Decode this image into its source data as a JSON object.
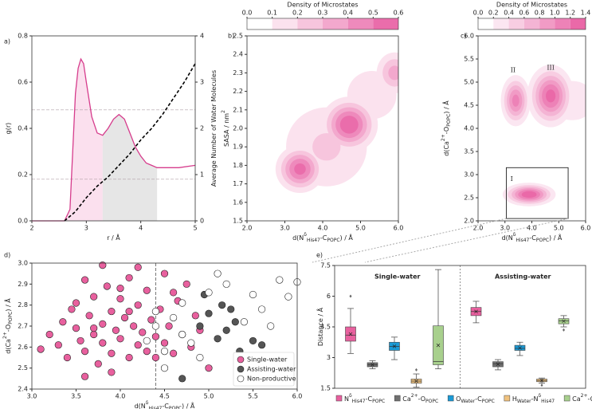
{
  "chart_data": [
    {
      "type": "line",
      "panel_label": "a)",
      "x_label": [
        {
          "text": "r / Å"
        }
      ],
      "y_label": [
        {
          "text": "g(r)"
        }
      ],
      "y2_label": [
        {
          "text": "Average Number of Water Molecules"
        }
      ],
      "xlim": [
        2,
        5
      ],
      "xticks": [
        2,
        3,
        4,
        5
      ],
      "ylim": [
        0,
        0.8
      ],
      "yticks": [
        {
          "value": 0,
          "label": "0.0"
        },
        0.2,
        0.4,
        0.6,
        0.8
      ],
      "y2lim": [
        0,
        4
      ],
      "y2ticks": [
        0,
        1,
        2,
        3,
        4
      ],
      "regions": [
        {
          "x": [
            2.6,
            3.3
          ],
          "color": "#fbe0ee"
        },
        {
          "x": [
            3.3,
            4.3
          ],
          "color": "#e6e6e6"
        }
      ],
      "hlines": [
        0.48,
        0.18
      ],
      "series": [
        {
          "color": "#d63c8c",
          "x": [
            2.0,
            2.6,
            2.7,
            2.75,
            2.8,
            2.85,
            2.9,
            2.95,
            3.0,
            3.1,
            3.2,
            3.3,
            3.4,
            3.5,
            3.6,
            3.7,
            3.8,
            3.9,
            4.0,
            4.1,
            4.2,
            4.3,
            4.5,
            4.7,
            5.0
          ],
          "values": [
            0,
            0,
            0.05,
            0.3,
            0.55,
            0.66,
            0.7,
            0.68,
            0.6,
            0.45,
            0.38,
            0.37,
            0.4,
            0.44,
            0.46,
            0.44,
            0.38,
            0.32,
            0.28,
            0.25,
            0.24,
            0.23,
            0.23,
            0.23,
            0.24
          ]
        },
        {
          "color": "#000000",
          "dashed": true,
          "axis": "y2",
          "x": [
            2.6,
            2.8,
            3.0,
            3.2,
            3.4,
            3.6,
            3.8,
            4.0,
            4.2,
            4.4,
            4.6,
            4.8,
            5.0
          ],
          "values": [
            0,
            0.2,
            0.5,
            0.75,
            0.95,
            1.2,
            1.45,
            1.75,
            2.0,
            2.3,
            2.65,
            3.0,
            3.4
          ]
        }
      ]
    },
    {
      "type": "contour",
      "panel_label": "b)",
      "colorbar_title": "Density of Microstates",
      "clim": [
        0,
        0.6
      ],
      "cticks": [
        {
          "value": 0,
          "label": "0.0"
        },
        0.1,
        0.2,
        0.3,
        0.4,
        0.5,
        0.6
      ],
      "colors": [
        "#ffffff",
        "#e6509a"
      ],
      "x_label": [
        {
          "text": "d(N"
        },
        {
          "text": "δ",
          "shift": "super"
        },
        {
          "text": "His47",
          "shift": "sub"
        },
        {
          "text": "-C"
        },
        {
          "text": "POPC",
          "shift": "sub"
        },
        {
          "text": ") / Å"
        }
      ],
      "y_label": [
        {
          "text": "SASA / nm"
        },
        {
          "text": "2",
          "shift": "super"
        }
      ],
      "xlim": [
        2,
        6
      ],
      "xticks": [
        {
          "value": 2,
          "label": "2.0"
        },
        {
          "value": 3,
          "label": "3.0"
        },
        {
          "value": 4,
          "label": "4.0"
        },
        {
          "value": 5,
          "label": "5.0"
        },
        {
          "value": 6,
          "label": "6.0"
        }
      ],
      "ylim": [
        1.5,
        2.5
      ],
      "yticks": [
        1.5,
        1.6,
        1.7,
        1.8,
        1.9,
        {
          "value": 2,
          "label": "2.0"
        },
        2.1,
        2.2,
        2.3,
        2.4,
        2.5
      ],
      "peaks": [
        {
          "x": 4.1,
          "y": 1.9,
          "density": 0.22,
          "sx": 0.85,
          "sy": 0.17
        },
        {
          "x": 5.3,
          "y": 2.18,
          "density": 0.18,
          "sx": 0.6,
          "sy": 0.12
        },
        {
          "x": 3.4,
          "y": 1.78,
          "density": 0.55,
          "sx": 0.35,
          "sy": 0.07
        },
        {
          "x": 4.7,
          "y": 2.02,
          "density": 0.6,
          "sx": 0.4,
          "sy": 0.08
        },
        {
          "x": 5.9,
          "y": 2.3,
          "density": 0.35,
          "sx": 0.3,
          "sy": 0.07
        }
      ]
    },
    {
      "type": "contour",
      "panel_label": "c)",
      "colorbar_title": "Density of Microstates",
      "clim": [
        0,
        1.4
      ],
      "cticks": [
        {
          "value": 0,
          "label": "0.0"
        },
        0.2,
        0.4,
        0.6,
        0.8,
        {
          "value": 1,
          "label": "1.0"
        },
        1.2,
        1.4
      ],
      "colors": [
        "#ffffff",
        "#e6509a"
      ],
      "x_label": [
        {
          "text": "d(N"
        },
        {
          "text": "δ",
          "shift": "super"
        },
        {
          "text": "His47",
          "shift": "sub"
        },
        {
          "text": "-C"
        },
        {
          "text": "POPC",
          "shift": "sub"
        },
        {
          "text": ") / Å"
        }
      ],
      "y_label": [
        {
          "text": "d(Ca"
        },
        {
          "text": "2+",
          "shift": "super"
        },
        {
          "text": "-O"
        },
        {
          "text": "POPC",
          "shift": "sub"
        },
        {
          "text": ") / Å"
        }
      ],
      "xlim": [
        2,
        6
      ],
      "xticks": [
        {
          "value": 2,
          "label": "2.0"
        },
        {
          "value": 3,
          "label": "3.0"
        },
        {
          "value": 4,
          "label": "4.0"
        },
        {
          "value": 5,
          "label": "5.0"
        },
        {
          "value": 6,
          "label": "6.0"
        }
      ],
      "ylim": [
        2,
        6
      ],
      "yticks": [
        {
          "value": 2,
          "label": "2.0"
        },
        2.5,
        {
          "value": 3,
          "label": "3.0"
        },
        3.5,
        {
          "value": 4,
          "label": "4.0"
        },
        4.5,
        {
          "value": 5,
          "label": "5.0"
        },
        5.5,
        {
          "value": 6,
          "label": "6.0"
        }
      ],
      "peaks": [
        {
          "x": 5.5,
          "y": 4.6,
          "density": 0.35,
          "sx": 0.8,
          "sy": 0.4
        },
        {
          "x": 3.9,
          "y": 2.57,
          "density": 1.4,
          "sx": 0.5,
          "sy": 0.13
        },
        {
          "x": 3.4,
          "y": 4.6,
          "density": 1.1,
          "sx": 0.3,
          "sy": 0.3
        },
        {
          "x": 4.7,
          "y": 4.7,
          "density": 1.3,
          "sx": 0.45,
          "sy": 0.35
        }
      ],
      "annotations": [
        "I",
        "II",
        "III"
      ]
    },
    {
      "type": "scatter",
      "panel_label": "d)",
      "x_label": [
        {
          "text": "d(N"
        },
        {
          "text": "δ",
          "shift": "super"
        },
        {
          "text": "His47",
          "shift": "sub"
        },
        {
          "text": "-C"
        },
        {
          "text": "POPC",
          "shift": "sub"
        },
        {
          "text": ") / Å"
        }
      ],
      "y_label": [
        {
          "text": "d(Ca"
        },
        {
          "text": "2+",
          "shift": "super"
        },
        {
          "text": "-O"
        },
        {
          "text": "POPC",
          "shift": "sub"
        },
        {
          "text": ") / Å"
        }
      ],
      "xlim": [
        3,
        6
      ],
      "xticks": [
        {
          "value": 3,
          "label": "3.0"
        },
        3.5,
        {
          "value": 4,
          "label": "4.0"
        },
        4.5,
        {
          "value": 5,
          "label": "5.0"
        },
        5.5,
        {
          "value": 6,
          "label": "6.0"
        }
      ],
      "ylim": [
        2.4,
        3
      ],
      "yticks": [
        2.4,
        2.5,
        2.6,
        2.7,
        2.8,
        2.9,
        {
          "value": 3,
          "label": "3.0"
        }
      ],
      "vline": 4.4,
      "legend": "lower right",
      "series": [
        {
          "name": "Single-water",
          "color": "#e8609e",
          "x": [
            3.1,
            3.2,
            3.3,
            3.35,
            3.4,
            3.45,
            3.5,
            3.55,
            3.6,
            3.6,
            3.65,
            3.7,
            3.7,
            3.75,
            3.8,
            3.8,
            3.85,
            3.9,
            3.9,
            3.95,
            4.0,
            4.0,
            4.05,
            4.1,
            4.1,
            4.15,
            4.2,
            4.2,
            4.25,
            4.3,
            4.3,
            4.35,
            4.4,
            4.45,
            4.5,
            4.5,
            4.55,
            4.6,
            4.65,
            4.7,
            4.75,
            4.8,
            4.85,
            4.9,
            5.0,
            3.6,
            3.9,
            4.2,
            4.6,
            3.5,
            3.8,
            4.0,
            4.4,
            3.7,
            4.1
          ],
          "values": [
            2.59,
            2.66,
            2.61,
            2.72,
            2.55,
            2.78,
            2.69,
            2.63,
            2.92,
            2.58,
            2.75,
            2.66,
            2.84,
            2.52,
            2.71,
            2.62,
            2.89,
            2.57,
            2.77,
            2.68,
            2.64,
            2.83,
            2.74,
            2.55,
            2.93,
            2.7,
            2.61,
            2.8,
            2.67,
            2.58,
            2.87,
            2.73,
            2.65,
            2.78,
            2.62,
            2.95,
            2.7,
            2.57,
            2.82,
            2.66,
            2.9,
            2.6,
            2.75,
            2.68,
            2.5,
            2.46,
            2.48,
            2.98,
            2.86,
            2.81,
            2.99,
            2.88,
            2.55,
            2.69,
            2.77
          ]
        },
        {
          "name": "Assisting-water",
          "color": "#555555",
          "x": [
            4.9,
            5.0,
            5.1,
            5.15,
            5.2,
            5.3,
            5.35,
            5.5,
            5.6,
            4.7,
            4.95,
            5.25
          ],
          "values": [
            2.7,
            2.76,
            2.64,
            2.8,
            2.68,
            2.72,
            2.58,
            2.63,
            2.61,
            2.45,
            2.85,
            2.78
          ]
        },
        {
          "name": "Non-productive",
          "color": "#ffffff",
          "x": [
            4.3,
            4.4,
            4.5,
            4.6,
            4.7,
            4.8,
            4.9,
            5.0,
            5.2,
            5.4,
            5.5,
            5.6,
            5.8,
            5.9,
            6.0,
            4.5,
            4.7,
            5.1,
            5.7,
            4.4
          ],
          "values": [
            2.63,
            2.7,
            2.58,
            2.74,
            2.66,
            2.62,
            2.55,
            2.86,
            2.9,
            2.72,
            2.85,
            2.78,
            2.92,
            2.84,
            2.91,
            2.5,
            2.81,
            2.95,
            2.7,
            2.77
          ]
        }
      ]
    },
    {
      "type": "box",
      "panel_label": "e)",
      "y_label": [
        {
          "text": "Distance / Å"
        }
      ],
      "ylim": [
        1.5,
        7.5
      ],
      "yticks": [
        1.5,
        3,
        4.5,
        6,
        7.5
      ],
      "legend": [
        {
          "color": "#e8609e",
          "label": [
            {
              "text": "N"
            },
            {
              "text": "δ",
              "shift": "super"
            },
            {
              "text": "His47",
              "shift": "sub"
            },
            {
              "text": "-C"
            },
            {
              "text": "POPC",
              "shift": "sub"
            }
          ]
        },
        {
          "color": "#707070",
          "label": [
            {
              "text": "Ca"
            },
            {
              "text": "2+",
              "shift": "super"
            },
            {
              "text": "-O"
            },
            {
              "text": "POPC",
              "shift": "sub"
            }
          ]
        },
        {
          "color": "#1a9ad6",
          "label": [
            {
              "text": "O"
            },
            {
              "text": "Water",
              "shift": "sub"
            },
            {
              "text": "-C"
            },
            {
              "text": "POPC",
              "shift": "sub"
            }
          ]
        },
        {
          "color": "#f0c27e",
          "label": [
            {
              "text": "H"
            },
            {
              "text": "Water",
              "shift": "sub"
            },
            {
              "text": "-N"
            },
            {
              "text": "δ",
              "shift": "super"
            },
            {
              "text": "His47",
              "shift": "sub"
            }
          ]
        },
        {
          "color": "#a8d08d",
          "label": [
            {
              "text": "Ca"
            },
            {
              "text": "2+",
              "shift": "super"
            },
            {
              "text": "-O"
            },
            {
              "text": "Water",
              "shift": "sub"
            }
          ]
        }
      ],
      "groups": [
        {
          "name": "Single-water",
          "color": "#e8609e",
          "boxes": [
            {
              "min": 3.2,
              "q1": 3.8,
              "median": 4.1,
              "q3": 4.5,
              "max": 5.4,
              "mean": 4.15,
              "outliers": [
                6.0
              ]
            },
            {
              "min": 2.45,
              "q1": 2.55,
              "median": 2.65,
              "q3": 2.75,
              "max": 2.85,
              "mean": 2.65,
              "outliers": []
            },
            {
              "min": 2.9,
              "q1": 3.35,
              "median": 3.55,
              "q3": 3.75,
              "max": 4.0,
              "mean": 3.55,
              "outliers": []
            },
            {
              "min": 1.55,
              "q1": 1.75,
              "median": 1.85,
              "q3": 1.95,
              "max": 2.2,
              "mean": 1.85,
              "outliers": [
                2.4
              ]
            },
            {
              "min": 2.45,
              "q1": 2.65,
              "median": 2.8,
              "q3": 4.55,
              "max": 7.3,
              "mean": 3.6,
              "outliers": []
            }
          ]
        },
        {
          "name": "Assisting-water",
          "color": "#000000",
          "boxes": [
            {
              "min": 4.7,
              "q1": 5.05,
              "median": 5.25,
              "q3": 5.45,
              "max": 5.75,
              "mean": 5.25,
              "outliers": []
            },
            {
              "min": 2.4,
              "q1": 2.55,
              "median": 2.7,
              "q3": 2.8,
              "max": 2.9,
              "mean": 2.68,
              "outliers": []
            },
            {
              "min": 3.1,
              "q1": 3.35,
              "median": 3.45,
              "q3": 3.6,
              "max": 3.75,
              "mean": 3.47,
              "outliers": []
            },
            {
              "min": 1.75,
              "q1": 1.82,
              "median": 1.88,
              "q3": 1.95,
              "max": 2.0,
              "mean": 1.88,
              "outliers": [
                1.65
              ]
            },
            {
              "min": 4.5,
              "q1": 4.65,
              "median": 4.8,
              "q3": 4.9,
              "max": 5.05,
              "mean": 4.78,
              "outliers": [
                4.35
              ]
            }
          ]
        }
      ]
    }
  ]
}
